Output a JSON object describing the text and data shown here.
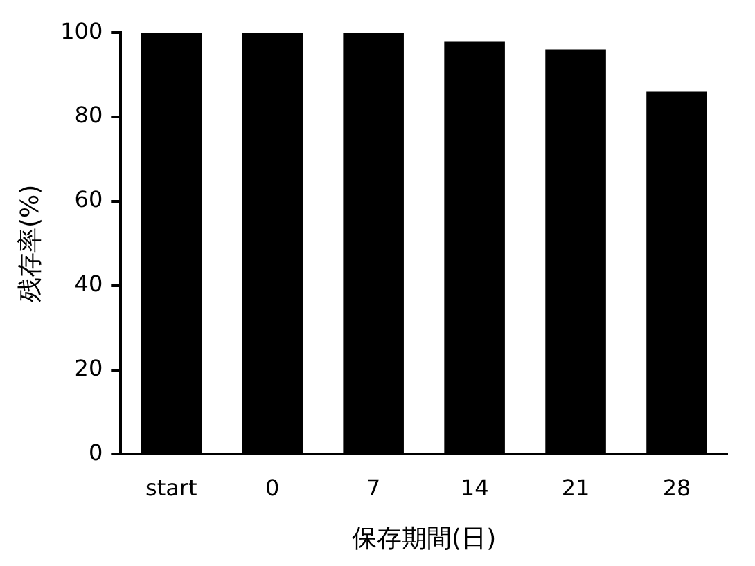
{
  "chart_data": {
    "type": "bar",
    "xlabel": "保存期間(日)",
    "ylabel": "残存率(%)",
    "categories": [
      "start",
      "0",
      "7",
      "14",
      "21",
      "28"
    ],
    "values": [
      100,
      100,
      100,
      98,
      96,
      86
    ],
    "color": "#000000",
    "ylim": [
      0,
      100
    ],
    "yticks": [
      0,
      20,
      40,
      60,
      80,
      100
    ],
    "grid": false,
    "legend": false
  }
}
